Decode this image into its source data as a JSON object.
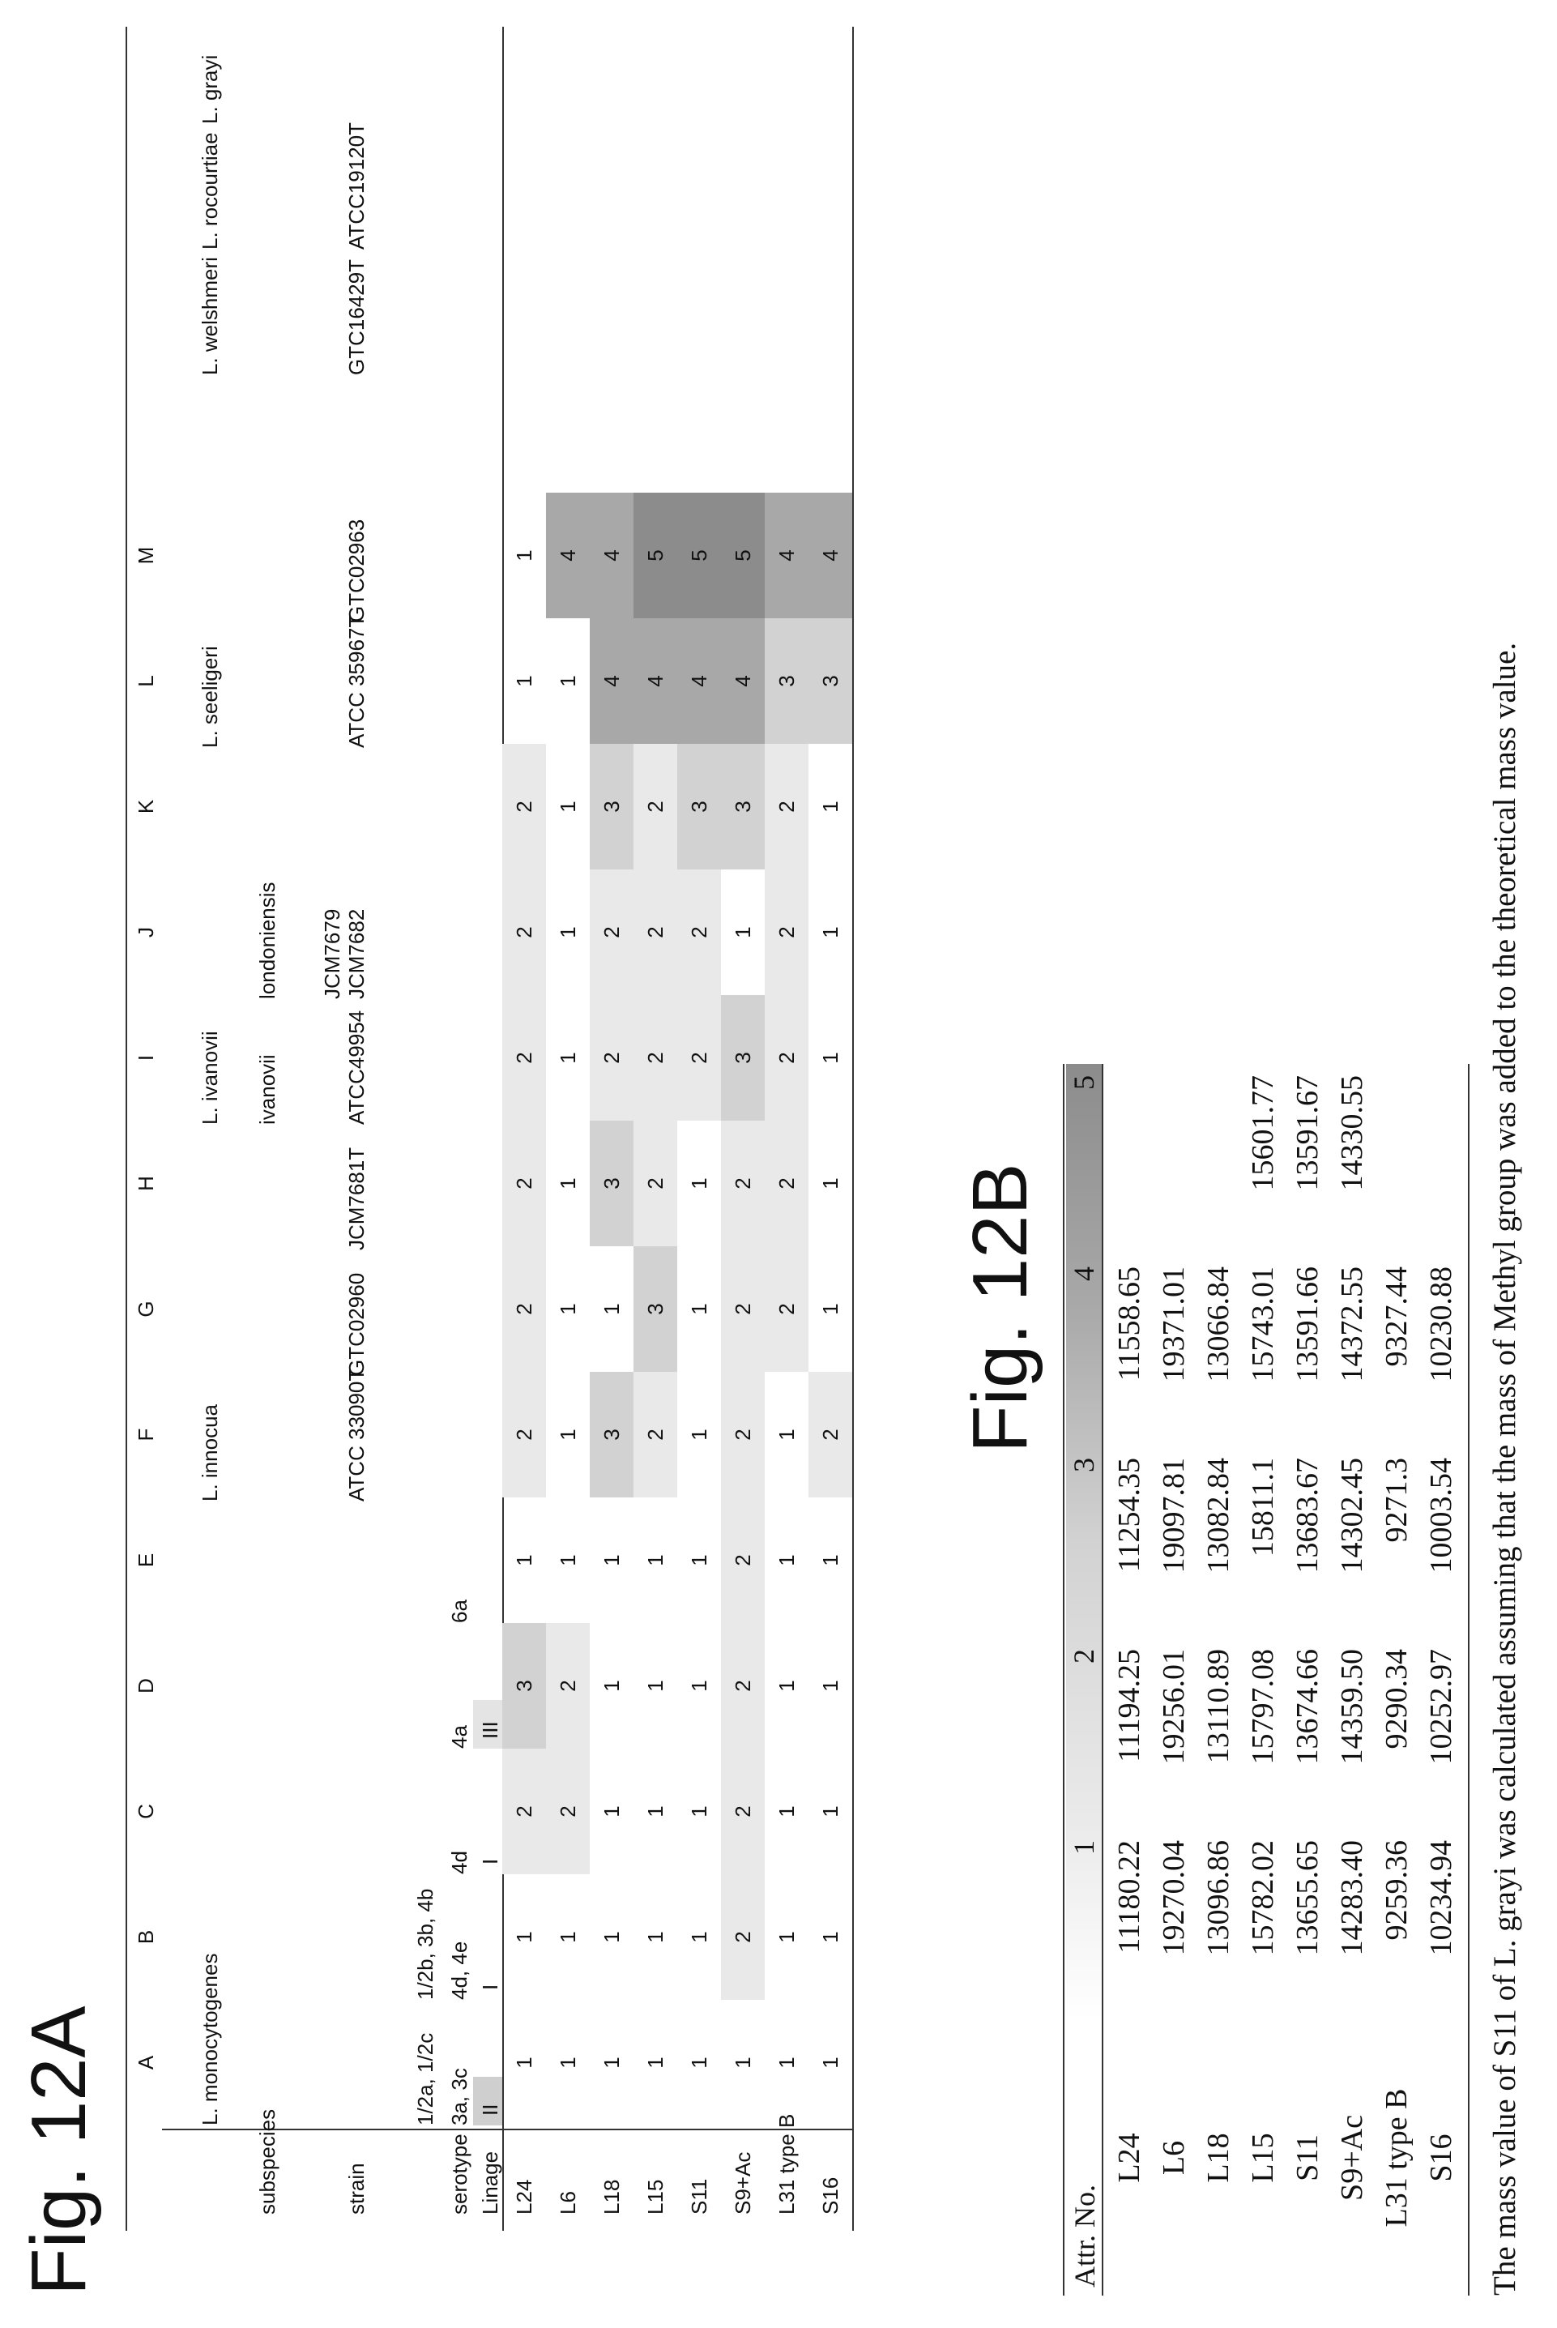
{
  "fig12a": {
    "title": "Fig. 12A",
    "col_letters": [
      "A",
      "B",
      "C",
      "D",
      "E",
      "F",
      "G",
      "H",
      "I",
      "J",
      "K",
      "L",
      "M"
    ],
    "row_labels": {
      "subspecies": "subspecies",
      "strain": "strain",
      "serotype": "serotype",
      "linage": "Linage"
    },
    "species": {
      "l_monocytogenes": "L. monocytogenes",
      "l_innocua": "L. innocua",
      "l_ivanovii": "L. ivanovii",
      "l_seeligeri": "L. seeligeri",
      "l_welshmeri": "L. welshmeri",
      "l_rocourtiae": "L. rocourtiae",
      "l_grayi": "L. grayi"
    },
    "subspecies": {
      "ivanovii": "ivanovii",
      "londoniensis": "londoniensis"
    },
    "strains": {
      "E": "ATCC 33090T",
      "F": "GTC02960",
      "G": "JCM7681T",
      "H": "ATCC49954",
      "I1": "JCM7679",
      "I2": "JCM7682",
      "J": "ATCC 35967T",
      "K": "GTC02963",
      "L": "GTC16429T",
      "M": "ATCC19120T"
    },
    "serotypes": {
      "A_top": "1/2a, 1/2c",
      "A_bottom": "3a, 3c",
      "B_top": "1/2b, 3b, 4b",
      "B_bottom": "4d, 4e",
      "C": "4d",
      "D": "4a",
      "E": "6a"
    },
    "linage": {
      "A": "II",
      "B": "I",
      "C": "I",
      "D": "III"
    },
    "rows": [
      {
        "name": "L24",
        "values": [
          1,
          1,
          2,
          3,
          1,
          2,
          2,
          2,
          2,
          2,
          2,
          1,
          1
        ]
      },
      {
        "name": "L6",
        "values": [
          1,
          1,
          2,
          2,
          1,
          1,
          1,
          1,
          1,
          1,
          1,
          1,
          4
        ]
      },
      {
        "name": "L18",
        "values": [
          1,
          1,
          1,
          1,
          1,
          3,
          1,
          3,
          2,
          2,
          3,
          4,
          4
        ]
      },
      {
        "name": "L15",
        "values": [
          1,
          1,
          1,
          1,
          1,
          2,
          3,
          2,
          2,
          2,
          2,
          4,
          5
        ]
      },
      {
        "name": "S11",
        "values": [
          1,
          1,
          1,
          1,
          1,
          1,
          1,
          1,
          2,
          2,
          3,
          4,
          5
        ]
      },
      {
        "name": "S9+Ac",
        "values": [
          1,
          2,
          2,
          2,
          2,
          2,
          2,
          2,
          3,
          1,
          3,
          4,
          5
        ]
      },
      {
        "name": "L31 type B",
        "values": [
          1,
          1,
          1,
          1,
          1,
          1,
          2,
          2,
          2,
          2,
          2,
          3,
          4
        ]
      },
      {
        "name": "S16",
        "values": [
          1,
          1,
          1,
          1,
          1,
          2,
          1,
          1,
          1,
          1,
          1,
          3,
          4
        ]
      }
    ]
  },
  "fig12b": {
    "title": "Fig. 12B",
    "header_label": "Attr. No.",
    "attrs": [
      "1",
      "2",
      "3",
      "4",
      "5"
    ],
    "rows": [
      {
        "name": "L24",
        "values": [
          "11180.22",
          "11194.25",
          "11254.35",
          "11558.65",
          ""
        ]
      },
      {
        "name": "L6",
        "values": [
          "19270.04",
          "19256.01",
          "19097.81",
          "19371.01",
          ""
        ]
      },
      {
        "name": "L18",
        "values": [
          "13096.86",
          "13110.89",
          "13082.84",
          "13066.84",
          ""
        ]
      },
      {
        "name": "L15",
        "values": [
          "15782.02",
          "15797.08",
          "15811.1",
          "15743.01",
          "15601.77"
        ]
      },
      {
        "name": "S11",
        "values": [
          "13655.65",
          "13674.66",
          "13683.67",
          "13591.66",
          "13591.67"
        ]
      },
      {
        "name": "S9+Ac",
        "values": [
          "14283.40",
          "14359.50",
          "14302.45",
          "14372.55",
          "14330.55"
        ]
      },
      {
        "name": "L31 type B",
        "values": [
          "9259.36",
          "9290.34",
          "9271.3",
          "9327.44",
          ""
        ]
      },
      {
        "name": "S16",
        "values": [
          "10234.94",
          "10252.97",
          "10003.54",
          "10230.88",
          ""
        ]
      }
    ],
    "footnote": "The mass value of S11 of L. grayi was calculated assuming that the mass of Methyl group was added to the theoretical mass value."
  },
  "colors": {
    "level1": "#ffffff",
    "level2": "#e9e9e9",
    "level3": "#d2d2d2",
    "level4": "#a8a8a8",
    "level5": "#8c8c8c"
  }
}
